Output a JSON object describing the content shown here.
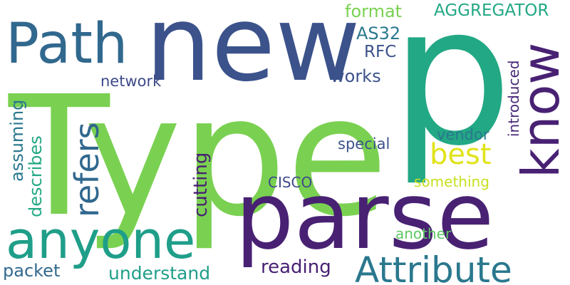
{
  "palette": {
    "purple": "#482173",
    "navy": "#3e4a89",
    "blue": "#31688e",
    "teal": "#26828e",
    "green": "#1f9e89",
    "mint": "#35b779",
    "lime": "#6ece58",
    "yellowgreen": "#b5de2b",
    "yellow": "#e6e419"
  },
  "words": [
    {
      "id": "type",
      "text": "Type",
      "color": "#7ad151"
    },
    {
      "id": "p",
      "text": "p",
      "color": "#22a884"
    },
    {
      "id": "new",
      "text": "new",
      "color": "#3b528b"
    },
    {
      "id": "parse",
      "text": "parse",
      "color": "#482173"
    },
    {
      "id": "path",
      "text": "Path",
      "color": "#31688e"
    },
    {
      "id": "anyone",
      "text": "anyone",
      "color": "#1f9e89"
    },
    {
      "id": "know",
      "text": "know",
      "color": "#482173"
    },
    {
      "id": "attribute",
      "text": "Attribute",
      "color": "#2a788e"
    },
    {
      "id": "refers",
      "text": "refers",
      "color": "#31688e"
    },
    {
      "id": "best",
      "text": "best",
      "color": "#e0e31a"
    },
    {
      "id": "format",
      "text": "format",
      "color": "#7ad151"
    },
    {
      "id": "aggregator",
      "text": "AGGREGATOR",
      "color": "#22a884"
    },
    {
      "id": "as32",
      "text": "AS32",
      "color": "#2a788e"
    },
    {
      "id": "rfc",
      "text": "RFC",
      "color": "#3b528b"
    },
    {
      "id": "works",
      "text": "works",
      "color": "#3b528b"
    },
    {
      "id": "network",
      "text": "network",
      "color": "#3e4a89"
    },
    {
      "id": "introduced",
      "text": "introduced",
      "color": "#482878"
    },
    {
      "id": "assuming",
      "text": "assuming",
      "color": "#2a788e"
    },
    {
      "id": "describes",
      "text": "describes",
      "color": "#22a884"
    },
    {
      "id": "cutting",
      "text": "cutting",
      "color": "#482173"
    },
    {
      "id": "special",
      "text": "special",
      "color": "#3b528b"
    },
    {
      "id": "vendor",
      "text": "vendor",
      "color": "#2a788e"
    },
    {
      "id": "cisco",
      "text": "CISCO",
      "color": "#3e4a89"
    },
    {
      "id": "something",
      "text": "something",
      "color": "#c8e020"
    },
    {
      "id": "another",
      "text": "another",
      "color": "#5ec962"
    },
    {
      "id": "packet",
      "text": "packet",
      "color": "#31688e"
    },
    {
      "id": "understand",
      "text": "understand",
      "color": "#1f9e89"
    },
    {
      "id": "reading",
      "text": "reading",
      "color": "#482173"
    }
  ]
}
